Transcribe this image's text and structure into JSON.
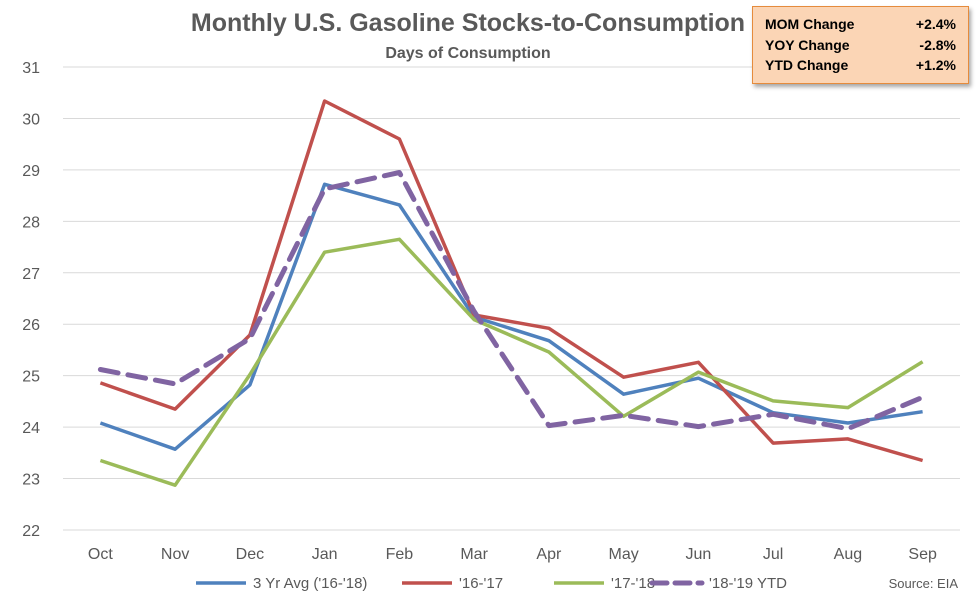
{
  "chart_data": {
    "type": "line",
    "title": "Monthly U.S. Gasoline Stocks-to-Consumption",
    "subtitle": "Days of Consumption",
    "categories": [
      "Oct",
      "Nov",
      "Dec",
      "Jan",
      "Feb",
      "Mar",
      "Apr",
      "May",
      "Jun",
      "Jul",
      "Aug",
      "Sep"
    ],
    "ylim": [
      22,
      31
    ],
    "yticks": [
      "22",
      "23",
      "24",
      "25",
      "26",
      "27",
      "28",
      "29",
      "30",
      "31"
    ],
    "grid": true,
    "legend_position": "bottom",
    "series": [
      {
        "name": "3 Yr Avg ('16-'18)",
        "color": "#4f81bd",
        "dashed": false,
        "values": [
          24.08,
          23.57,
          24.82,
          28.72,
          28.32,
          26.14,
          25.68,
          24.64,
          24.95,
          24.28,
          24.08,
          24.3
        ]
      },
      {
        "name": "'16-'17",
        "color": "#c0504d",
        "dashed": false,
        "values": [
          24.86,
          24.35,
          25.79,
          30.34,
          29.6,
          26.18,
          25.92,
          24.97,
          25.26,
          23.69,
          23.77,
          23.35
        ]
      },
      {
        "name": "'17-'18",
        "color": "#9bbb59",
        "dashed": false,
        "values": [
          23.35,
          22.87,
          25.02,
          27.4,
          27.65,
          26.09,
          25.46,
          24.21,
          25.07,
          24.51,
          24.38,
          25.27
        ]
      },
      {
        "name": "'18-'19 YTD",
        "color": "#8064a2",
        "dashed": true,
        "values": [
          25.12,
          24.84,
          25.72,
          28.63,
          28.95,
          26.25,
          24.03,
          24.23,
          24.01,
          24.25,
          23.97,
          24.58
        ]
      }
    ],
    "annotation": "Source: EIA"
  },
  "stats_box": {
    "rows": [
      {
        "label": "MOM Change",
        "value": "+2.4%"
      },
      {
        "label": "YOY Change",
        "value": "-2.8%"
      },
      {
        "label": "YTD Change",
        "value": "+1.2%"
      }
    ]
  }
}
